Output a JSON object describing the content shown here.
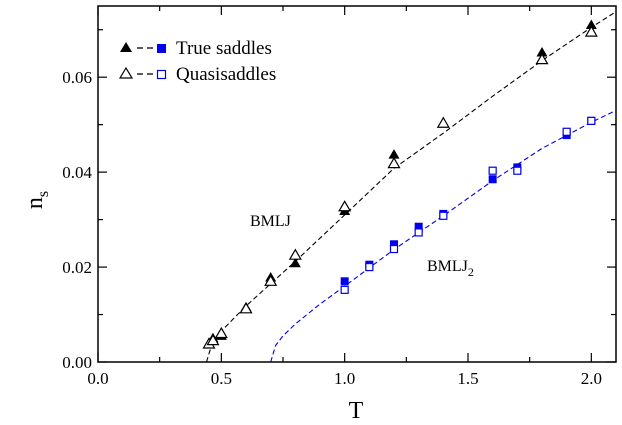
{
  "chart_data": {
    "type": "scatter",
    "xlabel": "T",
    "ylabel_main": "n",
    "ylabel_sub": "s",
    "xlim": [
      0.0,
      2.1
    ],
    "ylim": [
      0.0,
      0.075
    ],
    "xticks": [
      0.0,
      0.5,
      1.0,
      1.5,
      2.0
    ],
    "xtick_labels": [
      "0.0",
      "0.5",
      "1.0",
      "1.5",
      "2.0"
    ],
    "yticks": [
      0.0,
      0.02,
      0.04,
      0.06
    ],
    "ytick_labels": [
      "0.00",
      "0.02",
      "0.04",
      "0.06"
    ],
    "grid": false,
    "legend": {
      "position": "top-left",
      "entries": [
        {
          "label": "True saddles",
          "markers": [
            "filled-triangle",
            "filled-square"
          ]
        },
        {
          "label": "Quasisaddles",
          "markers": [
            "open-triangle",
            "open-square"
          ]
        }
      ]
    },
    "annotations": [
      {
        "text": "BMLJ",
        "x": 1.0,
        "y": 0.0325
      },
      {
        "text": "BMLJ",
        "sub": "2",
        "x": 1.33,
        "y": 0.0215
      }
    ],
    "colors": {
      "bmlj": "#000000",
      "bmlj2": "#0000ee"
    },
    "series": [
      {
        "group": "BMLJ",
        "kind": "True saddles",
        "marker": "filled-triangle",
        "color": "#000000",
        "x": [
          0.466,
          0.5,
          0.6,
          0.7,
          0.8,
          1.0,
          1.2,
          1.8,
          2.0
        ],
        "y": [
          0.005,
          0.0055,
          0.0115,
          0.0178,
          0.0208,
          0.0318,
          0.0437,
          0.0652,
          0.071
        ]
      },
      {
        "group": "BMLJ",
        "kind": "Quasisaddles",
        "marker": "open-triangle",
        "color": "#000000",
        "x": [
          0.45,
          0.466,
          0.5,
          0.6,
          0.7,
          0.8,
          1.0,
          1.2,
          1.4,
          1.8,
          2.0
        ],
        "y": [
          0.0038,
          0.0045,
          0.006,
          0.0112,
          0.017,
          0.0225,
          0.0327,
          0.0418,
          0.0503,
          0.0637,
          0.0695
        ]
      },
      {
        "group": "BMLJ2",
        "kind": "True saddles",
        "marker": "filled-square",
        "color": "#0000ee",
        "x": [
          1.0,
          1.1,
          1.2,
          1.3,
          1.4,
          1.6,
          1.7,
          1.9,
          2.0
        ],
        "y": [
          0.017,
          0.0205,
          0.0248,
          0.0285,
          0.0312,
          0.0385,
          0.041,
          0.0478,
          0.0508
        ]
      },
      {
        "group": "BMLJ2",
        "kind": "Quasisaddles",
        "marker": "open-square",
        "color": "#0000ee",
        "x": [
          1.0,
          1.1,
          1.2,
          1.3,
          1.4,
          1.6,
          1.7,
          1.9,
          2.0
        ],
        "y": [
          0.0152,
          0.02,
          0.0238,
          0.0273,
          0.0308,
          0.0403,
          0.0403,
          0.0485,
          0.0508
        ]
      }
    ],
    "fits": [
      {
        "group": "BMLJ",
        "color": "#000000",
        "dash": "dashed",
        "x": [
          0.44,
          0.46,
          0.5,
          0.6,
          0.7,
          0.8,
          1.0,
          1.2,
          1.4,
          1.6,
          1.8,
          2.0,
          2.1
        ],
        "y": [
          0.0,
          0.0035,
          0.0065,
          0.0118,
          0.0165,
          0.0212,
          0.031,
          0.0408,
          0.0482,
          0.056,
          0.0635,
          0.0705,
          0.0738
        ]
      },
      {
        "group": "BMLJ2",
        "color": "#0000ee",
        "dash": "dashed",
        "x": [
          0.7,
          0.72,
          0.75,
          0.8,
          0.9,
          1.0,
          1.2,
          1.4,
          1.6,
          1.8,
          2.0,
          2.1
        ],
        "y": [
          0.0,
          0.0035,
          0.0055,
          0.008,
          0.0122,
          0.016,
          0.0237,
          0.0308,
          0.0382,
          0.045,
          0.0505,
          0.053
        ]
      }
    ]
  }
}
